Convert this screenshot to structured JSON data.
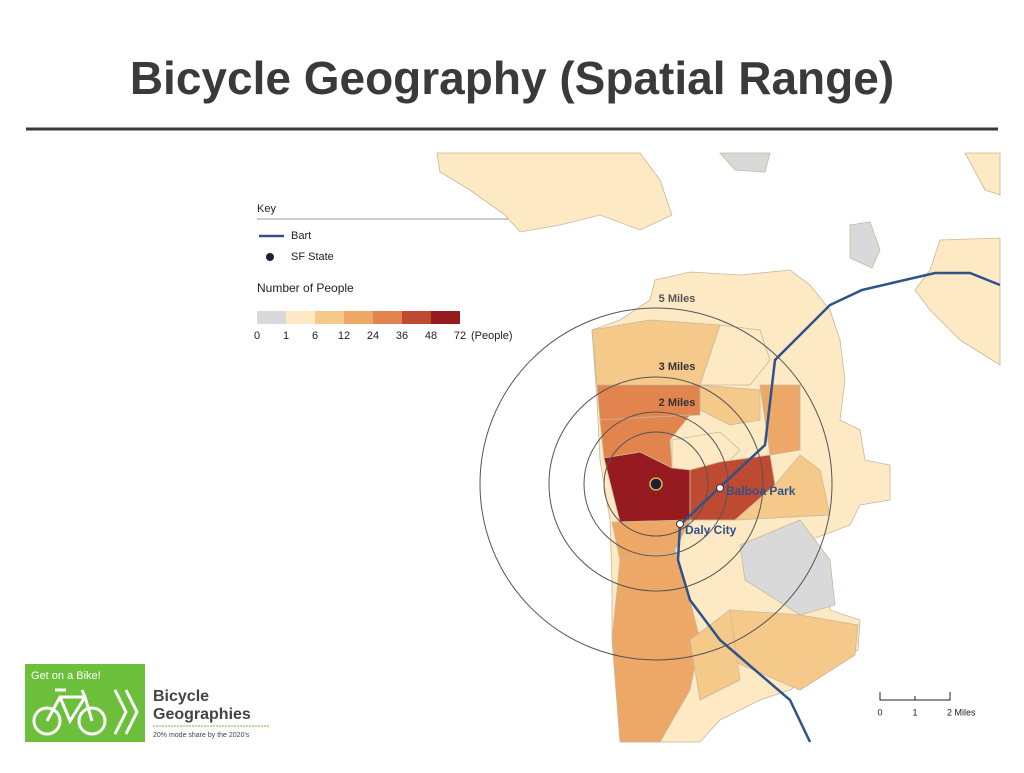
{
  "title": "Bicycle Geography (Spatial Range)",
  "key": {
    "title": "Key",
    "items": [
      "Bart",
      "SF State"
    ],
    "legend_title": "Number of People",
    "bins": [
      0,
      1,
      6,
      12,
      24,
      36,
      48,
      72
    ],
    "unit": "(People)"
  },
  "rings": [
    "5 Miles",
    "3 Miles",
    "2 Miles"
  ],
  "stations": [
    "Balboa Park",
    "Daly City"
  ],
  "scale_bar": [
    "0",
    "1",
    "2 Miles"
  ],
  "logo": {
    "badge": "Get on a Bike!",
    "line1": "Bicycle",
    "line2": "Geographies",
    "tagline": "20% mode share by the 2020's"
  }
}
